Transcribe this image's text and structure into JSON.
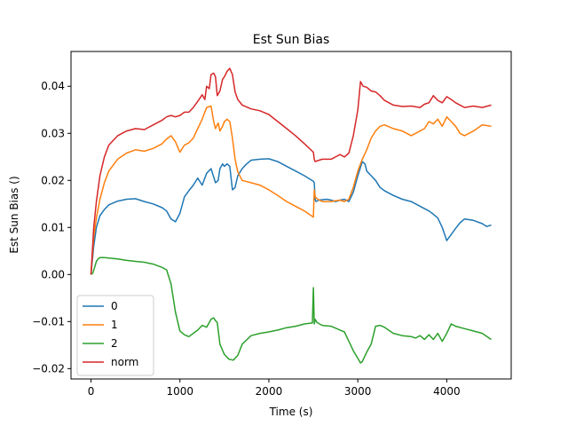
{
  "chart_data": {
    "type": "line",
    "title": "Est Sun Bias",
    "xlabel": "Time (s)",
    "ylabel": "Est Sun Bias ()",
    "xlim": [
      -225,
      4725
    ],
    "ylim": [
      -0.0222,
      0.0474
    ],
    "xticks": [
      0,
      1000,
      2000,
      3000,
      4000
    ],
    "yticks": [
      -0.02,
      -0.01,
      0.0,
      0.01,
      0.02,
      0.03,
      0.04
    ],
    "xtick_labels": [
      "0",
      "1000",
      "2000",
      "3000",
      "4000"
    ],
    "ytick_labels": [
      "−0.02",
      "−0.01",
      "0.00",
      "0.01",
      "0.02",
      "0.03",
      "0.04"
    ],
    "grid": false,
    "legend_position": "lower-left",
    "series": [
      {
        "name": "0",
        "color": "#1f77b4",
        "x": [
          0,
          30,
          60,
          100,
          150,
          200,
          300,
          400,
          500,
          600,
          700,
          800,
          850,
          900,
          950,
          1000,
          1050,
          1100,
          1150,
          1200,
          1250,
          1300,
          1350,
          1400,
          1430,
          1450,
          1480,
          1500,
          1530,
          1560,
          1590,
          1620,
          1650,
          1700,
          1750,
          1800,
          1900,
          2000,
          2100,
          2200,
          2300,
          2400,
          2500,
          2510,
          2520,
          2530,
          2560,
          2600,
          2650,
          2700,
          2750,
          2800,
          2850,
          2900,
          2950,
          3000,
          3050,
          3080,
          3100,
          3150,
          3200,
          3250,
          3300,
          3400,
          3500,
          3600,
          3700,
          3800,
          3850,
          3900,
          3950,
          4000,
          4050,
          4100,
          4150,
          4200,
          4300,
          4400,
          4450,
          4500
        ],
        "y": [
          0.0,
          0.006,
          0.01,
          0.0125,
          0.0138,
          0.0148,
          0.0156,
          0.016,
          0.0161,
          0.0155,
          0.015,
          0.0142,
          0.0135,
          0.0118,
          0.0112,
          0.013,
          0.0165,
          0.0178,
          0.019,
          0.0205,
          0.019,
          0.0215,
          0.0225,
          0.0195,
          0.02,
          0.0225,
          0.0235,
          0.023,
          0.0235,
          0.023,
          0.018,
          0.0185,
          0.021,
          0.0225,
          0.0235,
          0.0243,
          0.0245,
          0.0246,
          0.024,
          0.023,
          0.022,
          0.021,
          0.0198,
          0.0195,
          0.016,
          0.0155,
          0.0158,
          0.0159,
          0.016,
          0.0158,
          0.0155,
          0.0158,
          0.016,
          0.0155,
          0.0175,
          0.021,
          0.024,
          0.0235,
          0.022,
          0.021,
          0.02,
          0.0185,
          0.0178,
          0.0168,
          0.016,
          0.0155,
          0.0145,
          0.0135,
          0.0128,
          0.012,
          0.01,
          0.0072,
          0.0085,
          0.0098,
          0.011,
          0.0118,
          0.0115,
          0.0108,
          0.0102,
          0.0105
        ]
      },
      {
        "name": "1",
        "color": "#ff7f0e",
        "x": [
          0,
          30,
          60,
          100,
          150,
          200,
          300,
          400,
          500,
          600,
          700,
          800,
          850,
          900,
          950,
          1000,
          1050,
          1100,
          1150,
          1200,
          1250,
          1300,
          1350,
          1380,
          1400,
          1430,
          1450,
          1480,
          1500,
          1530,
          1560,
          1590,
          1620,
          1650,
          1700,
          1800,
          1900,
          2000,
          2100,
          2200,
          2300,
          2400,
          2500,
          2510,
          2520,
          2550,
          2600,
          2700,
          2800,
          2850,
          2900,
          2950,
          3000,
          3050,
          3100,
          3150,
          3200,
          3250,
          3300,
          3400,
          3500,
          3600,
          3700,
          3750,
          3800,
          3850,
          3900,
          3950,
          4000,
          4050,
          4100,
          4150,
          4200,
          4300,
          4400,
          4500
        ],
        "y": [
          0.0,
          0.008,
          0.012,
          0.016,
          0.0195,
          0.022,
          0.0245,
          0.0258,
          0.0265,
          0.0262,
          0.0268,
          0.0278,
          0.0288,
          0.0295,
          0.0282,
          0.026,
          0.0275,
          0.028,
          0.029,
          0.031,
          0.033,
          0.0355,
          0.0358,
          0.0325,
          0.031,
          0.0322,
          0.0305,
          0.0315,
          0.0325,
          0.033,
          0.0325,
          0.029,
          0.0245,
          0.0218,
          0.02,
          0.0195,
          0.019,
          0.018,
          0.0168,
          0.0155,
          0.0145,
          0.0135,
          0.0122,
          0.018,
          0.0165,
          0.016,
          0.0155,
          0.0155,
          0.0158,
          0.0155,
          0.016,
          0.0185,
          0.022,
          0.0245,
          0.0265,
          0.029,
          0.0305,
          0.0315,
          0.0318,
          0.031,
          0.0305,
          0.0295,
          0.0305,
          0.031,
          0.0325,
          0.032,
          0.033,
          0.0315,
          0.0335,
          0.0325,
          0.0315,
          0.03,
          0.0295,
          0.0305,
          0.0318,
          0.0315
        ]
      },
      {
        "name": "2",
        "color": "#2ca02c",
        "x": [
          0,
          20,
          40,
          60,
          80,
          100,
          150,
          200,
          300,
          400,
          500,
          600,
          700,
          800,
          850,
          900,
          950,
          1000,
          1050,
          1100,
          1150,
          1200,
          1250,
          1300,
          1350,
          1380,
          1400,
          1420,
          1450,
          1500,
          1550,
          1600,
          1650,
          1700,
          1800,
          1900,
          2000,
          2100,
          2200,
          2300,
          2400,
          2490,
          2500,
          2510,
          2520,
          2540,
          2600,
          2700,
          2800,
          2850,
          2900,
          2950,
          3000,
          3030,
          3050,
          3100,
          3150,
          3200,
          3250,
          3300,
          3400,
          3500,
          3600,
          3650,
          3700,
          3750,
          3800,
          3850,
          3900,
          3950,
          4000,
          4050,
          4100,
          4200,
          4300,
          4400,
          4500
        ],
        "y": [
          0.0,
          0.0003,
          0.0015,
          0.0028,
          0.0033,
          0.0036,
          0.0036,
          0.0035,
          0.0033,
          0.003,
          0.0028,
          0.0026,
          0.0022,
          0.0015,
          0.001,
          -0.002,
          -0.008,
          -0.012,
          -0.0128,
          -0.0132,
          -0.0125,
          -0.0118,
          -0.0108,
          -0.0112,
          -0.0095,
          -0.0092,
          -0.0098,
          -0.0102,
          -0.0148,
          -0.017,
          -0.018,
          -0.0182,
          -0.0172,
          -0.0148,
          -0.013,
          -0.0125,
          -0.0122,
          -0.0118,
          -0.0113,
          -0.011,
          -0.0105,
          -0.0103,
          -0.0028,
          -0.0105,
          -0.0095,
          -0.0102,
          -0.0108,
          -0.011,
          -0.0118,
          -0.0122,
          -0.0142,
          -0.0162,
          -0.0178,
          -0.0188,
          -0.0185,
          -0.0165,
          -0.0148,
          -0.011,
          -0.0108,
          -0.0112,
          -0.0125,
          -0.013,
          -0.0132,
          -0.0135,
          -0.013,
          -0.0138,
          -0.0128,
          -0.0138,
          -0.0125,
          -0.0142,
          -0.0125,
          -0.0105,
          -0.011,
          -0.0115,
          -0.012,
          -0.0125,
          -0.0138
        ]
      },
      {
        "name": "norm",
        "color": "#d62728",
        "x": [
          0,
          30,
          60,
          100,
          150,
          200,
          300,
          400,
          500,
          600,
          700,
          800,
          850,
          900,
          950,
          1000,
          1050,
          1100,
          1150,
          1200,
          1250,
          1280,
          1300,
          1330,
          1350,
          1380,
          1400,
          1420,
          1450,
          1480,
          1500,
          1530,
          1560,
          1590,
          1620,
          1650,
          1700,
          1800,
          1900,
          2000,
          2100,
          2200,
          2300,
          2400,
          2500,
          2510,
          2520,
          2550,
          2600,
          2700,
          2800,
          2850,
          2900,
          2950,
          3000,
          3030,
          3060,
          3100,
          3150,
          3200,
          3250,
          3300,
          3400,
          3500,
          3600,
          3700,
          3750,
          3800,
          3850,
          3900,
          3950,
          4000,
          4050,
          4100,
          4150,
          4200,
          4300,
          4400,
          4500
        ],
        "y": [
          0.0,
          0.01,
          0.0155,
          0.021,
          0.025,
          0.0275,
          0.0295,
          0.0305,
          0.031,
          0.0308,
          0.0318,
          0.0328,
          0.0335,
          0.0338,
          0.0335,
          0.0338,
          0.0345,
          0.0345,
          0.0355,
          0.0368,
          0.0382,
          0.0372,
          0.04,
          0.0395,
          0.0425,
          0.0428,
          0.042,
          0.038,
          0.039,
          0.0415,
          0.042,
          0.0432,
          0.0438,
          0.0425,
          0.0388,
          0.0372,
          0.036,
          0.0352,
          0.0348,
          0.034,
          0.0325,
          0.031,
          0.0295,
          0.0278,
          0.026,
          0.0245,
          0.024,
          0.0242,
          0.0245,
          0.0245,
          0.0255,
          0.025,
          0.0258,
          0.0295,
          0.035,
          0.041,
          0.04,
          0.0398,
          0.039,
          0.0388,
          0.038,
          0.037,
          0.036,
          0.0357,
          0.0358,
          0.0355,
          0.0362,
          0.0365,
          0.038,
          0.037,
          0.0365,
          0.0378,
          0.0372,
          0.0365,
          0.036,
          0.0355,
          0.0358,
          0.0355,
          0.036
        ]
      }
    ]
  }
}
